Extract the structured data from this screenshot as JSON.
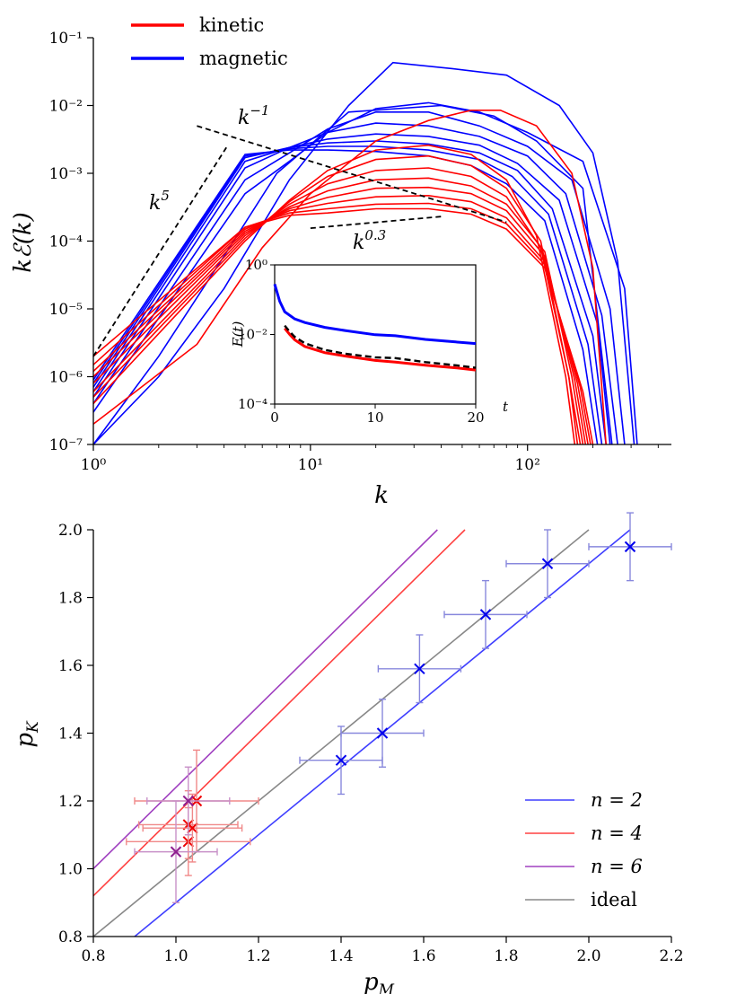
{
  "colors": {
    "kinetic": "#ff0000",
    "magnetic": "#0000ff",
    "n2": "#3f3fff",
    "n4": "#ff4040",
    "n6": "#a040c0",
    "ideal": "#888888"
  },
  "chart_data": [
    {
      "type": "line",
      "xlabel": "k",
      "ylabel": "kℰ(k)",
      "xscale": "log",
      "yscale": "log",
      "xlim": [
        1,
        460
      ],
      "ylim": [
        1e-07,
        0.1
      ],
      "xticks": [
        1,
        10,
        100
      ],
      "xtick_labels": [
        "10⁰",
        "10¹",
        "10²"
      ],
      "yticks": [
        1e-07,
        1e-06,
        1e-05,
        0.0001,
        0.001,
        0.01,
        0.1
      ],
      "ytick_labels": [
        "10⁻⁷",
        "10⁻⁶",
        "10⁻⁵",
        "10⁻⁴",
        "10⁻³",
        "10⁻²",
        "10⁻¹"
      ],
      "legend": {
        "placement": "top-left",
        "entries": [
          "kinetic",
          "magnetic"
        ]
      },
      "magnetic_series": [
        {
          "k": [
            1,
            5,
            8,
            12,
            20,
            35,
            60,
            100,
            180,
            280,
            320
          ],
          "E": [
            3e-07,
            0.0005,
            0.0015,
            0.004,
            0.009,
            0.011,
            0.008,
            0.004,
            0.0015,
            2e-05,
            1e-07
          ]
        },
        {
          "k": [
            1,
            5,
            8,
            12,
            20,
            35,
            60,
            100,
            160,
            240,
            280
          ],
          "E": [
            4e-07,
            0.0008,
            0.002,
            0.0045,
            0.008,
            0.008,
            0.005,
            0.0025,
            0.0008,
            1e-05,
            1e-07
          ]
        },
        {
          "k": [
            1,
            5,
            8,
            12,
            20,
            35,
            60,
            100,
            150,
            220,
            260
          ],
          "E": [
            5e-07,
            0.0012,
            0.0024,
            0.004,
            0.0055,
            0.005,
            0.0035,
            0.0018,
            0.0005,
            8e-06,
            1e-07
          ]
        },
        {
          "k": [
            1,
            5,
            8,
            12,
            20,
            35,
            60,
            90,
            140,
            210,
            240
          ],
          "E": [
            6e-07,
            0.0015,
            0.0024,
            0.0032,
            0.0038,
            0.0035,
            0.0026,
            0.0014,
            0.0004,
            6e-06,
            1e-07
          ]
        },
        {
          "k": [
            1,
            5,
            8,
            12,
            20,
            35,
            60,
            90,
            130,
            200,
            230
          ],
          "E": [
            7e-07,
            0.0017,
            0.0024,
            0.0028,
            0.003,
            0.0027,
            0.002,
            0.0011,
            0.0003,
            4e-06,
            1e-07
          ]
        },
        {
          "k": [
            1,
            5,
            8,
            12,
            20,
            35,
            60,
            85,
            125,
            190,
            220
          ],
          "E": [
            8e-07,
            0.0018,
            0.0023,
            0.0025,
            0.0025,
            0.0022,
            0.0016,
            0.0009,
            0.00025,
            3e-06,
            1e-07
          ]
        },
        {
          "k": [
            1,
            5,
            8,
            12,
            20,
            35,
            55,
            80,
            120,
            180,
            210
          ],
          "E": [
            9e-07,
            0.0019,
            0.0022,
            0.0022,
            0.0021,
            0.0018,
            0.0013,
            0.0007,
            0.0002,
            2.5e-06,
            1e-07
          ]
        },
        {
          "k": [
            1,
            2,
            4,
            7,
            15,
            40,
            70,
            110,
            180,
            245
          ],
          "E": [
            1e-07,
            2e-06,
            6e-05,
            0.001,
            0.008,
            0.01,
            0.007,
            0.003,
            0.0006,
            1e-07
          ]
        },
        {
          "k": [
            1,
            2,
            4,
            8,
            15,
            24,
            45,
            80,
            140,
            200,
            260,
            310
          ],
          "E": [
            1e-07,
            1e-06,
            2e-05,
            0.0008,
            0.01,
            0.043,
            0.035,
            0.028,
            0.01,
            0.002,
            5e-05,
            1e-07
          ]
        }
      ],
      "kinetic_series": [
        {
          "k": [
            1,
            5,
            8,
            12,
            20,
            35,
            55,
            80,
            120,
            180,
            200
          ],
          "E": [
            2e-06,
            0.00016,
            0.00024,
            0.00026,
            0.0003,
            0.0003,
            0.00025,
            0.00015,
            4e-05,
            6e-07,
            1e-07
          ]
        },
        {
          "k": [
            1,
            5,
            8,
            12,
            20,
            35,
            55,
            80,
            120,
            175,
            195
          ],
          "E": [
            1.5e-06,
            0.00016,
            0.00026,
            0.0003,
            0.00035,
            0.00036,
            0.0003,
            0.00018,
            4.5e-05,
            7e-07,
            1e-07
          ]
        },
        {
          "k": [
            1,
            5,
            8,
            12,
            20,
            35,
            55,
            80,
            120,
            170,
            190
          ],
          "E": [
            1.2e-06,
            0.00015,
            0.00028,
            0.00036,
            0.00045,
            0.00047,
            0.00038,
            0.00022,
            5e-05,
            8e-07,
            1e-07
          ]
        },
        {
          "k": [
            1,
            5,
            8,
            12,
            20,
            35,
            55,
            80,
            120,
            165,
            185
          ],
          "E": [
            1e-06,
            0.00014,
            0.0003,
            0.00044,
            0.0006,
            0.00062,
            0.0005,
            0.00028,
            6e-05,
            9e-07,
            1e-07
          ]
        },
        {
          "k": [
            1,
            5,
            8,
            12,
            20,
            35,
            55,
            80,
            120,
            160,
            180
          ],
          "E": [
            8e-07,
            0.00013,
            0.00032,
            0.00055,
            0.0008,
            0.00085,
            0.00065,
            0.00035,
            7e-05,
            1e-06,
            1e-07
          ]
        },
        {
          "k": [
            1,
            5,
            8,
            12,
            20,
            35,
            55,
            80,
            115,
            155,
            175
          ],
          "E": [
            6e-07,
            0.00012,
            0.00035,
            0.0007,
            0.0011,
            0.0012,
            0.0009,
            0.00045,
            8e-05,
            1e-06,
            1e-07
          ]
        },
        {
          "k": [
            1,
            5,
            8,
            12,
            20,
            35,
            55,
            80,
            115,
            155,
            170
          ],
          "E": [
            5e-07,
            0.00011,
            0.00038,
            0.0009,
            0.0016,
            0.0018,
            0.0013,
            0.0006,
            0.0001,
            1e-06,
            1e-07
          ]
        },
        {
          "k": [
            1,
            5,
            8,
            12,
            20,
            35,
            55,
            80,
            110,
            150,
            165
          ],
          "E": [
            4e-07,
            0.0001,
            0.0004,
            0.0011,
            0.0022,
            0.0026,
            0.0019,
            0.0008,
            0.00012,
            1e-06,
            1e-07
          ]
        },
        {
          "k": [
            1,
            3,
            6,
            10,
            20,
            35,
            55,
            75,
            110,
            160,
            200,
            230
          ],
          "E": [
            2e-07,
            3e-06,
            8e-05,
            0.0005,
            0.003,
            0.006,
            0.0085,
            0.0085,
            0.005,
            0.001,
            4e-05,
            1e-07
          ]
        }
      ],
      "guide_lines": [
        {
          "label": "k⁵",
          "k": [
            1,
            4.1
          ],
          "E": [
            2e-06,
            0.0024
          ]
        },
        {
          "label": "k⁻¹",
          "k": [
            3,
            80
          ],
          "E": [
            0.005,
            0.00019
          ]
        },
        {
          "label": "k^0.3",
          "k": [
            10,
            40
          ],
          "E": [
            0.000155,
            0.00023
          ]
        }
      ],
      "guide_labels": {
        "k5": {
          "base": "k",
          "exp": "5"
        },
        "kminus1": {
          "base": "k",
          "exp": "−1"
        },
        "k03": {
          "base": "k",
          "exp": "0.3"
        }
      },
      "inset": {
        "type": "line",
        "xlabel": "t",
        "ylabel": "E(t)",
        "yscale": "log",
        "xlim": [
          0,
          20
        ],
        "ylim": [
          0.0001,
          1
        ],
        "xticks": [
          0,
          10,
          20
        ],
        "ytick_labels": [
          "10⁰",
          "10⁻²",
          "10⁻⁴"
        ],
        "series": [
          {
            "name": "magnetic",
            "t": [
              0,
              0.5,
              1,
              2,
              3,
              5,
              7,
              10,
              12,
              15,
              18,
              20
            ],
            "E": [
              0.28,
              0.09,
              0.045,
              0.028,
              0.022,
              0.016,
              0.013,
              0.0098,
              0.0092,
              0.0072,
              0.0061,
              0.0055
            ]
          },
          {
            "name": "kinetic",
            "t": [
              1,
              1.5,
              2,
              3,
              5,
              7,
              10,
              12,
              15,
              18,
              20
            ],
            "E": [
              0.015,
              0.01,
              0.007,
              0.0045,
              0.003,
              0.0024,
              0.0018,
              0.0016,
              0.0013,
              0.0011,
              0.00095
            ]
          },
          {
            "name": "reference",
            "t": [
              1,
              1.5,
              2,
              3,
              5,
              7,
              10,
              12,
              15,
              18,
              20
            ],
            "E": [
              0.018,
              0.012,
              0.0085,
              0.0056,
              0.0036,
              0.0028,
              0.0022,
              0.0021,
              0.0016,
              0.0013,
              0.0011
            ]
          }
        ]
      }
    },
    {
      "type": "scatter",
      "xlabel": "p_M",
      "ylabel": "p_K",
      "xlim": [
        0.8,
        2.2
      ],
      "ylim": [
        0.8,
        2.0
      ],
      "xticks": [
        "0.8",
        "1.0",
        "1.2",
        "1.4",
        "1.6",
        "1.8",
        "2.0",
        "2.2"
      ],
      "yticks": [
        "0.8",
        "1.0",
        "1.2",
        "1.4",
        "1.6",
        "1.8",
        "2.0"
      ],
      "legend": {
        "placement": "bottom-right",
        "entries": [
          "n = 2",
          "n = 4",
          "n = 6",
          "ideal"
        ]
      },
      "lines": [
        {
          "name": "n = 2",
          "slope": 1,
          "intercept": -0.1
        },
        {
          "name": "n = 4",
          "slope": 1.2,
          "intercept": -0.04
        },
        {
          "name": "n = 6",
          "slope": 1.2,
          "intercept": 0.04
        },
        {
          "name": "ideal",
          "slope": 1,
          "intercept": 0
        }
      ],
      "points": [
        {
          "group": "n = 2",
          "x": 1.4,
          "y": 1.32,
          "xerr": 0.1,
          "yerr": 0.1
        },
        {
          "group": "n = 2",
          "x": 1.5,
          "y": 1.4,
          "xerr": 0.1,
          "yerr": 0.1
        },
        {
          "group": "n = 2",
          "x": 1.59,
          "y": 1.59,
          "xerr": 0.1,
          "yerr": 0.1
        },
        {
          "group": "n = 2",
          "x": 1.75,
          "y": 1.75,
          "xerr": 0.1,
          "yerr": 0.1
        },
        {
          "group": "n = 2",
          "x": 1.9,
          "y": 1.9,
          "xerr": 0.1,
          "yerr": 0.1
        },
        {
          "group": "n = 2",
          "x": 2.1,
          "y": 1.95,
          "xerr": 0.1,
          "yerr": 0.1
        },
        {
          "group": "n = 4",
          "x": 1.03,
          "y": 1.08,
          "xerr": 0.15,
          "yerr": 0.1
        },
        {
          "group": "n = 4",
          "x": 1.03,
          "y": 1.13,
          "xerr": 0.12,
          "yerr": 0.1
        },
        {
          "group": "n = 4",
          "x": 1.04,
          "y": 1.12,
          "xerr": 0.12,
          "yerr": 0.1
        },
        {
          "group": "n = 4",
          "x": 1.05,
          "y": 1.2,
          "xerr": 0.15,
          "yerr": 0.15
        },
        {
          "group": "n = 6",
          "x": 1.0,
          "y": 1.05,
          "xerr": 0.1,
          "yerr": 0.15
        },
        {
          "group": "n = 6",
          "x": 1.03,
          "y": 1.2,
          "xerr": 0.1,
          "yerr": 0.1
        }
      ]
    }
  ]
}
